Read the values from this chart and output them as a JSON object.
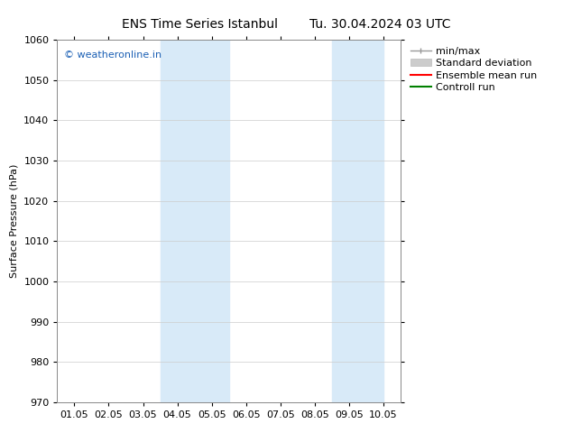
{
  "title_left": "ENS Time Series Istanbul",
  "title_right": "Tu. 30.04.2024 03 UTC",
  "ylabel": "Surface Pressure (hPa)",
  "ylim": [
    970,
    1060
  ],
  "yticks": [
    970,
    980,
    990,
    1000,
    1010,
    1020,
    1030,
    1040,
    1050,
    1060
  ],
  "xlim_start": 0.0,
  "xlim_end": 10.0,
  "xtick_labels": [
    "01.05",
    "02.05",
    "03.05",
    "04.05",
    "05.05",
    "06.05",
    "07.05",
    "08.05",
    "09.05",
    "10.05"
  ],
  "xtick_positions": [
    0.5,
    1.5,
    2.5,
    3.5,
    4.5,
    5.5,
    6.5,
    7.5,
    8.5,
    9.5
  ],
  "shaded_bands": [
    {
      "x_start": 3.0,
      "x_end": 5.0
    },
    {
      "x_start": 8.0,
      "x_end": 9.5
    }
  ],
  "shaded_color": "#d8eaf8",
  "watermark_text": "© weatheronline.in",
  "watermark_color": "#1a5fb4",
  "watermark_fontsize": 8,
  "background_color": "#ffffff",
  "grid_color": "#cccccc",
  "title_fontsize": 10,
  "axis_fontsize": 8,
  "tick_fontsize": 8,
  "legend_fontsize": 8
}
